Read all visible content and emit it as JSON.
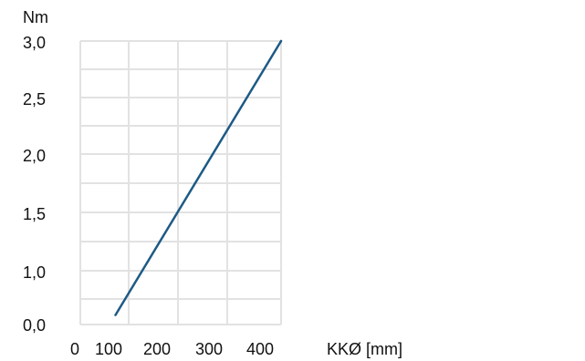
{
  "chart_data": {
    "type": "line",
    "title": "",
    "xlabel": "KKØ [mm]",
    "ylabel": "Nm",
    "x_tick_labels": [
      "0",
      "100",
      "200",
      "300",
      "400"
    ],
    "x_tick_values": [
      0,
      100,
      200,
      300,
      400
    ],
    "y_tick_labels": [
      "0,0",
      "1,0",
      "1,5",
      "2,0",
      "2,5",
      "3,0"
    ],
    "xlim": [
      0,
      400
    ],
    "ylim": [
      0,
      3.0
    ],
    "grid": true,
    "series": [
      {
        "color": "#1d5a85",
        "points": [
          {
            "x": 70,
            "y": 0.1
          },
          {
            "x": 400,
            "y": 3.0
          }
        ]
      }
    ]
  }
}
